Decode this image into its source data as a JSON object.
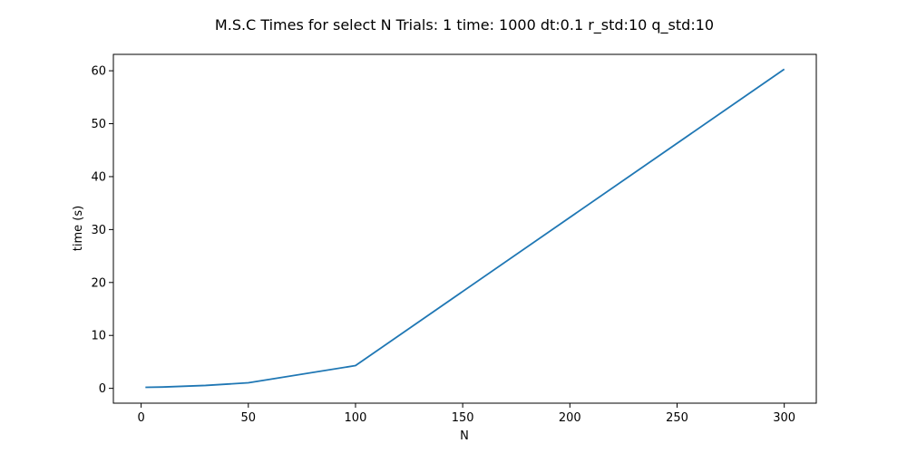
{
  "chart_data": {
    "type": "line",
    "title": "M.S.C Times for select N Trials: 1 time: 1000 dt:0.1 r_std:10 q_std:10",
    "xlabel": "N",
    "ylabel": "time (s)",
    "xlim": [
      -12.95,
      314.95
    ],
    "ylim": [
      -2.8,
      63.1
    ],
    "xticks": [
      0,
      50,
      100,
      150,
      200,
      250,
      300
    ],
    "yticks": [
      0,
      10,
      20,
      30,
      40,
      50,
      60
    ],
    "grid": false,
    "line_color": "#1f77b4",
    "series": [
      {
        "x": [
          2,
          10,
          30,
          50,
          100,
          300
        ],
        "y": [
          0.2,
          0.25,
          0.55,
          1.05,
          4.3,
          60.3
        ]
      }
    ]
  }
}
